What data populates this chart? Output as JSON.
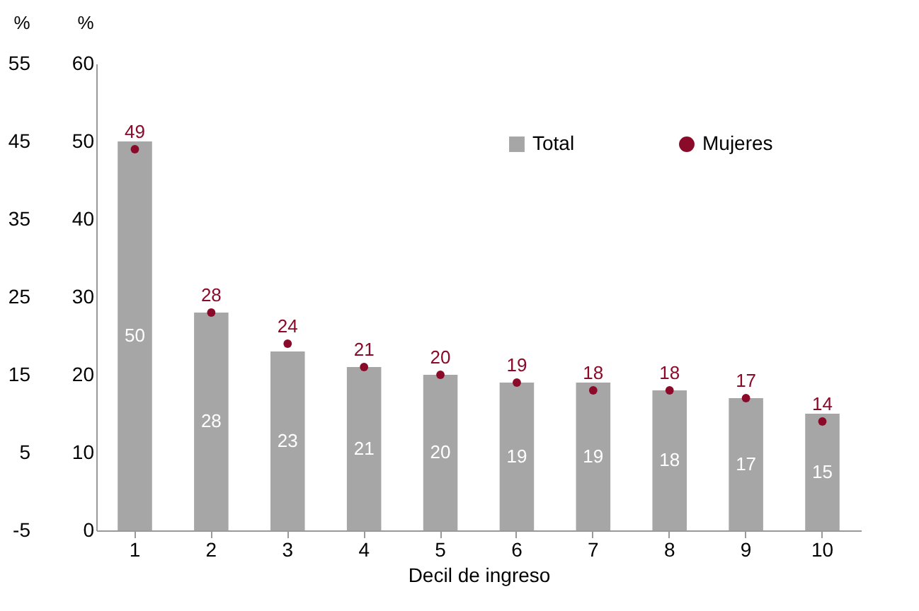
{
  "chart_data": {
    "type": "bar",
    "xlabel": "Decil de ingreso",
    "ylabel": "%",
    "y2label": "%",
    "categories": [
      "1",
      "2",
      "3",
      "4",
      "5",
      "6",
      "7",
      "8",
      "9",
      "10"
    ],
    "series": [
      {
        "name": "Total",
        "color": "#a6a6a6",
        "values": [
          50,
          28,
          23,
          21,
          20,
          19,
          19,
          18,
          17,
          15
        ]
      },
      {
        "name": "Mujeres",
        "type": "scatter",
        "color": "#8b0a2a",
        "values": [
          49,
          28,
          24,
          21,
          20,
          19,
          18,
          18,
          17,
          14
        ]
      }
    ],
    "ylim": [
      0,
      60
    ],
    "yticks": [
      0,
      10,
      20,
      30,
      40,
      50,
      60
    ],
    "y2lim": [
      -5,
      55
    ],
    "y2ticks": [
      -5,
      5,
      15,
      25,
      35,
      45,
      55
    ],
    "data_labels": true,
    "legend": "top right",
    "grid": false,
    "marker": "circle"
  }
}
